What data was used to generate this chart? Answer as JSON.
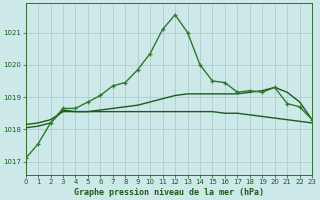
{
  "title": "Graphe pression niveau de la mer (hPa)",
  "background_color": "#cde8e8",
  "line_color_dark": "#1a5c1a",
  "line_color_medium": "#2d7a2d",
  "grid_color": "#b0cccc",
  "ylabel_ticks": [
    1017,
    1018,
    1019,
    1020,
    1021
  ],
  "xlim": [
    0,
    23
  ],
  "ylim": [
    1016.6,
    1021.9
  ],
  "x_ticks": [
    0,
    1,
    2,
    3,
    4,
    5,
    6,
    7,
    8,
    9,
    10,
    11,
    12,
    13,
    14,
    15,
    16,
    17,
    18,
    19,
    20,
    21,
    22,
    23
  ],
  "series1_x": [
    0,
    1,
    2,
    3,
    4,
    5,
    6,
    7,
    8,
    9,
    10,
    11,
    12,
    13,
    14,
    15,
    16,
    17,
    18,
    19,
    20,
    21,
    22,
    23
  ],
  "series1_y": [
    1017.1,
    1017.55,
    1018.2,
    1018.65,
    1018.65,
    1018.85,
    1019.05,
    1019.35,
    1019.45,
    1019.85,
    1020.35,
    1021.1,
    1021.55,
    1021.0,
    1020.0,
    1019.5,
    1019.45,
    1019.15,
    1019.2,
    1019.15,
    1019.3,
    1018.8,
    1018.7,
    1018.3
  ],
  "series2_x": [
    0,
    1,
    2,
    3,
    4,
    5,
    6,
    7,
    8,
    9,
    10,
    11,
    12,
    13,
    14,
    15,
    16,
    17,
    18,
    19,
    20,
    21,
    22,
    23
  ],
  "series2_y": [
    1018.05,
    1018.1,
    1018.2,
    1018.6,
    1018.55,
    1018.55,
    1018.6,
    1018.65,
    1018.7,
    1018.75,
    1018.85,
    1018.95,
    1019.05,
    1019.1,
    1019.1,
    1019.1,
    1019.1,
    1019.1,
    1019.15,
    1019.2,
    1019.3,
    1019.15,
    1018.85,
    1018.3
  ],
  "series3_x": [
    0,
    1,
    2,
    3,
    4,
    5,
    6,
    7,
    8,
    9,
    10,
    11,
    12,
    13,
    14,
    15,
    16,
    17,
    18,
    19,
    20,
    21,
    22,
    23
  ],
  "series3_y": [
    1018.15,
    1018.2,
    1018.3,
    1018.55,
    1018.55,
    1018.55,
    1018.55,
    1018.55,
    1018.55,
    1018.55,
    1018.55,
    1018.55,
    1018.55,
    1018.55,
    1018.55,
    1018.55,
    1018.5,
    1018.5,
    1018.45,
    1018.4,
    1018.35,
    1018.3,
    1018.25,
    1018.2
  ]
}
